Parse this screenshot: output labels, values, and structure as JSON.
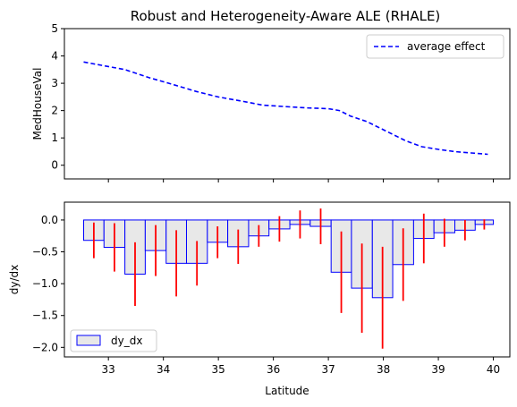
{
  "figure": {
    "title": "Robust and Heterogeneity-Aware ALE (RHALE)"
  },
  "chart_data": [
    {
      "type": "line",
      "title": "Robust and Heterogeneity-Aware ALE (RHALE)",
      "xlabel": "",
      "ylabel": "MedHouseVal",
      "xlim": [
        32.2,
        40.3
      ],
      "ylim": [
        -0.5,
        5.0
      ],
      "yticks": [
        0,
        1,
        2,
        3,
        4,
        5
      ],
      "xticks": [
        33,
        34,
        35,
        36,
        37,
        38,
        39,
        40
      ],
      "show_xtick_labels": false,
      "grid": false,
      "legend": "top-right",
      "series": [
        {
          "name": "average effect",
          "color": "#0000ff",
          "style": "dashed",
          "x": [
            32.55,
            33.3,
            33.75,
            34.1,
            34.6,
            35.0,
            35.5,
            35.8,
            36.2,
            36.6,
            37.0,
            37.2,
            37.4,
            37.7,
            37.95,
            38.2,
            38.4,
            38.7,
            39.0,
            39.3,
            39.6,
            39.9
          ],
          "y": [
            3.78,
            3.5,
            3.2,
            3.0,
            2.7,
            2.5,
            2.32,
            2.2,
            2.15,
            2.1,
            2.07,
            2.0,
            1.8,
            1.6,
            1.35,
            1.1,
            0.9,
            0.68,
            0.58,
            0.5,
            0.45,
            0.4
          ]
        }
      ]
    },
    {
      "type": "bar",
      "title": "",
      "xlabel": "Latitude",
      "ylabel": "dy/dx",
      "xlim": [
        32.2,
        40.3
      ],
      "ylim": [
        -2.15,
        0.28
      ],
      "yticks": [
        0.0,
        -0.5,
        -1.0,
        -1.5,
        -2.0
      ],
      "xticks": [
        33,
        34,
        35,
        36,
        37,
        38,
        39,
        40
      ],
      "grid": false,
      "legend": "bottom-left",
      "bar_fill": "#e8e8e8",
      "bar_edge": "#0000ff",
      "error_color": "#ff0000",
      "series": [
        {
          "name": "dy_dx",
          "bins": [
            {
              "x0": 32.55,
              "x1": 32.92,
              "value": -0.32,
              "std": 0.28
            },
            {
              "x0": 32.92,
              "x1": 33.3,
              "value": -0.43,
              "std": 0.38
            },
            {
              "x0": 33.3,
              "x1": 33.67,
              "value": -0.85,
              "std": 0.5
            },
            {
              "x0": 33.67,
              "x1": 34.05,
              "value": -0.48,
              "std": 0.4
            },
            {
              "x0": 34.05,
              "x1": 34.42,
              "value": -0.68,
              "std": 0.52
            },
            {
              "x0": 34.42,
              "x1": 34.8,
              "value": -0.68,
              "std": 0.35
            },
            {
              "x0": 34.8,
              "x1": 35.17,
              "value": -0.35,
              "std": 0.25
            },
            {
              "x0": 35.17,
              "x1": 35.55,
              "value": -0.42,
              "std": 0.27
            },
            {
              "x0": 35.55,
              "x1": 35.92,
              "value": -0.25,
              "std": 0.17
            },
            {
              "x0": 35.92,
              "x1": 36.3,
              "value": -0.14,
              "std": 0.2
            },
            {
              "x0": 36.3,
              "x1": 36.67,
              "value": -0.07,
              "std": 0.22
            },
            {
              "x0": 36.67,
              "x1": 37.05,
              "value": -0.1,
              "std": 0.28
            },
            {
              "x0": 37.05,
              "x1": 37.42,
              "value": -0.82,
              "std": 0.64
            },
            {
              "x0": 37.42,
              "x1": 37.8,
              "value": -1.07,
              "std": 0.7
            },
            {
              "x0": 37.8,
              "x1": 38.17,
              "value": -1.22,
              "std": 0.8
            },
            {
              "x0": 38.17,
              "x1": 38.55,
              "value": -0.7,
              "std": 0.57
            },
            {
              "x0": 38.55,
              "x1": 38.92,
              "value": -0.29,
              "std": 0.39
            },
            {
              "x0": 38.92,
              "x1": 39.3,
              "value": -0.2,
              "std": 0.22
            },
            {
              "x0": 39.3,
              "x1": 39.67,
              "value": -0.16,
              "std": 0.16
            },
            {
              "x0": 39.67,
              "x1": 40.0,
              "value": -0.07,
              "std": 0.08
            }
          ]
        }
      ]
    }
  ]
}
